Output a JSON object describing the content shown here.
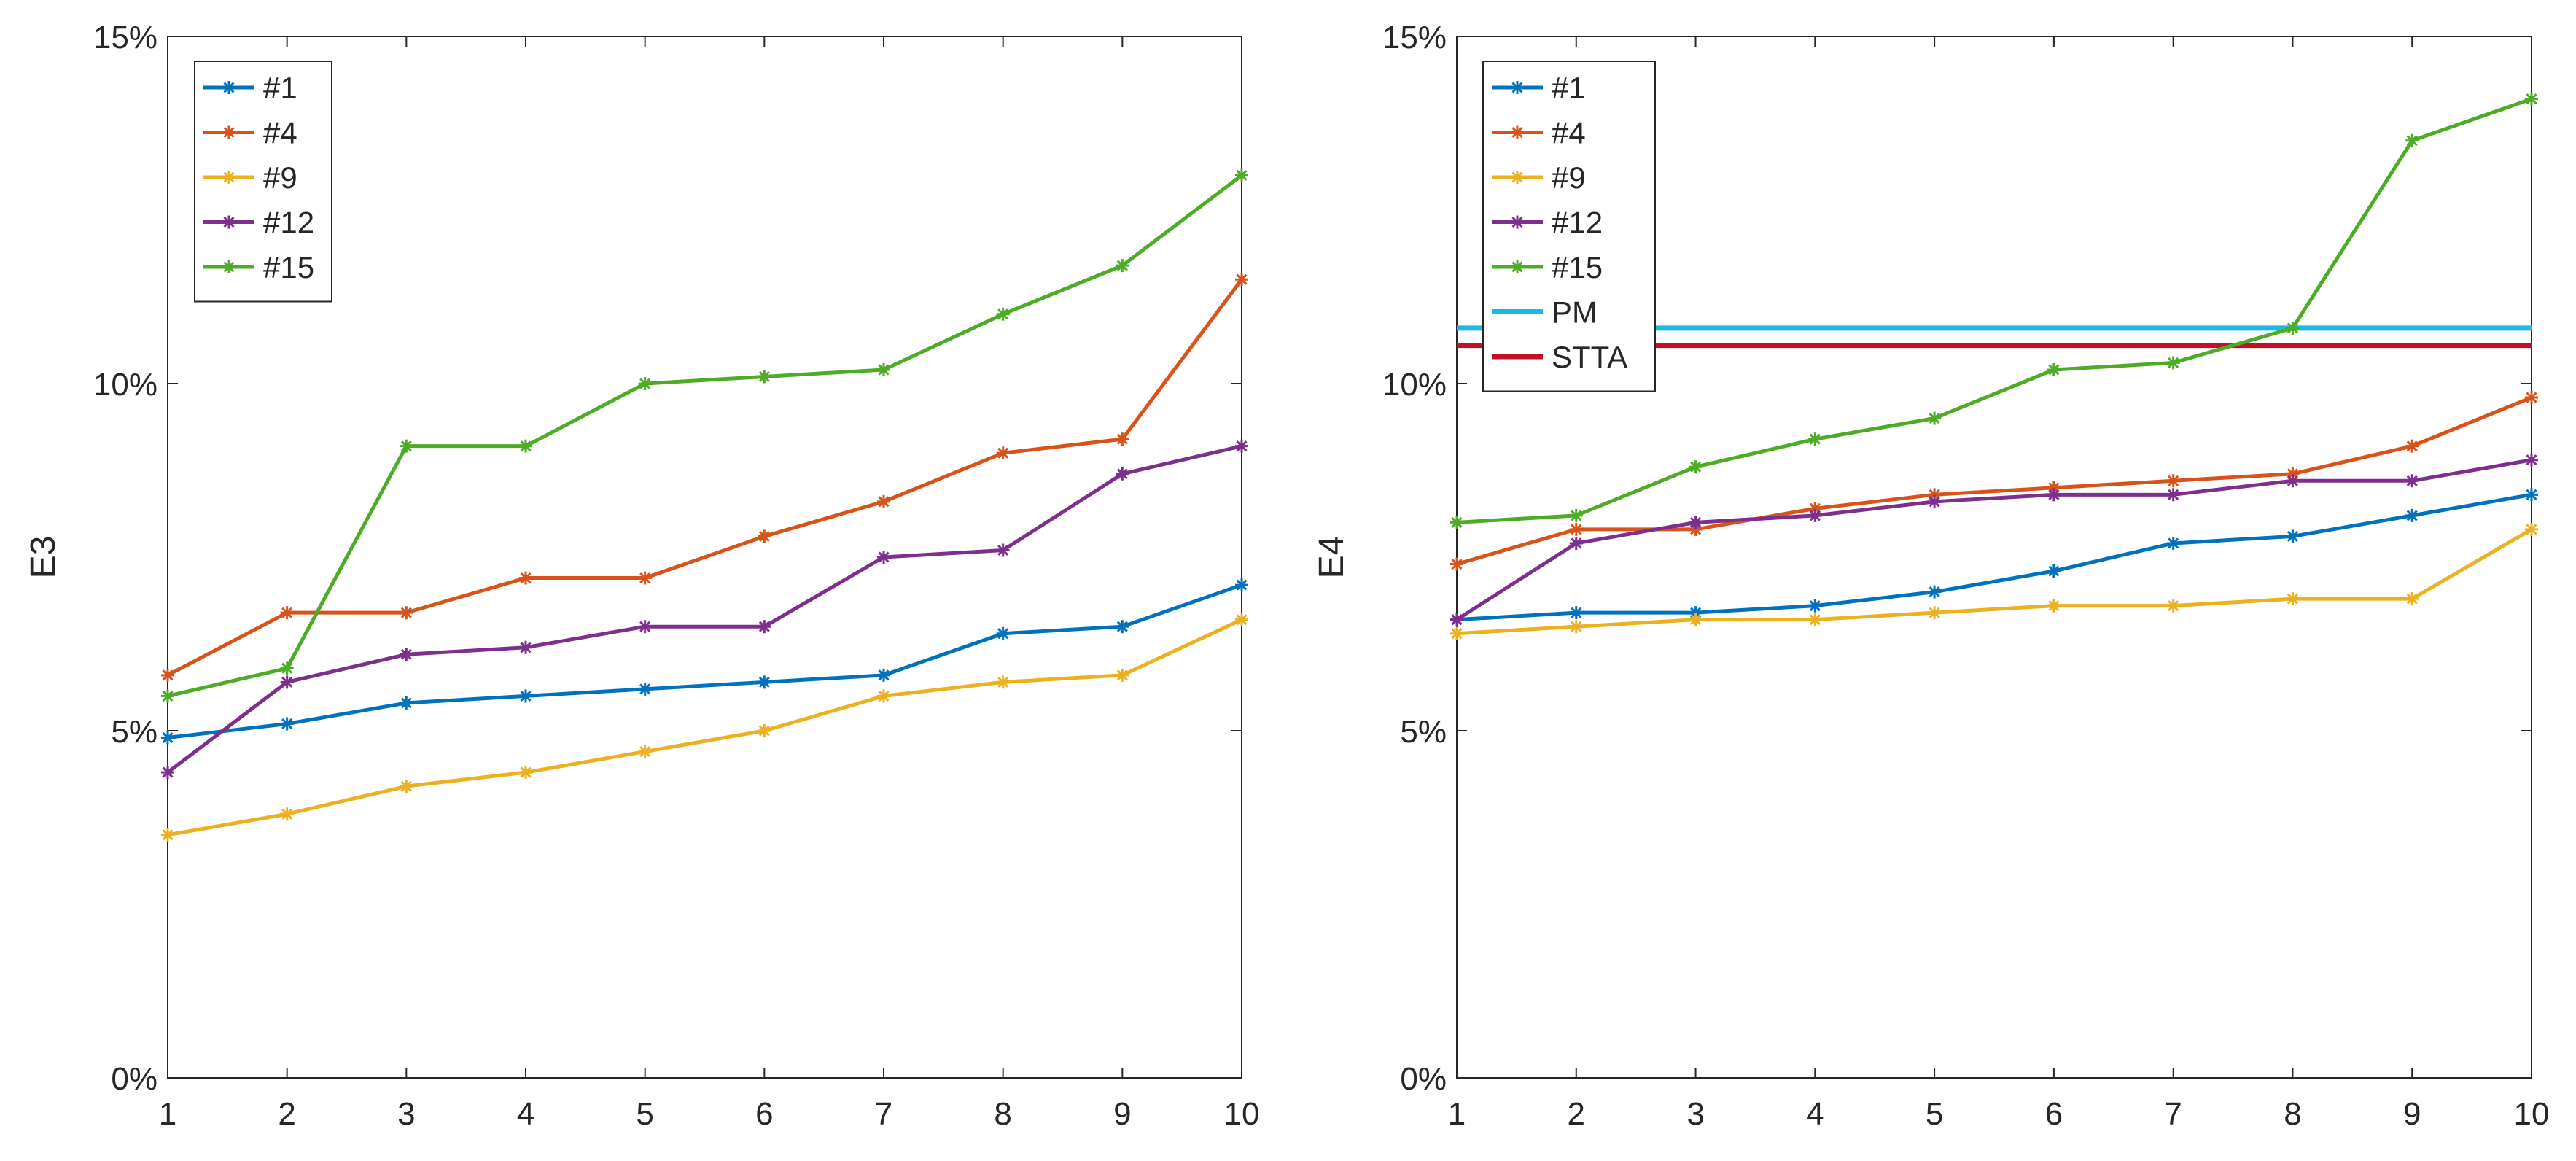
{
  "chart_data": [
    {
      "type": "line",
      "ylabel": "E3",
      "xlabel": "",
      "x": [
        1,
        2,
        3,
        4,
        5,
        6,
        7,
        8,
        9,
        10
      ],
      "xticks": [
        "1",
        "2",
        "3",
        "4",
        "5",
        "6",
        "7",
        "8",
        "9",
        "10"
      ],
      "ylim": [
        0,
        15
      ],
      "yticks": [
        0,
        5,
        10,
        15
      ],
      "ytick_labels": [
        "0%",
        "5%",
        "10%",
        "15%"
      ],
      "legend_position": "top-left",
      "series": [
        {
          "name": "#1",
          "color": "#0072BD",
          "values": [
            4.9,
            5.1,
            5.4,
            5.5,
            5.6,
            5.7,
            5.8,
            6.4,
            6.5,
            7.1
          ]
        },
        {
          "name": "#4",
          "color": "#D95319",
          "values": [
            5.8,
            6.7,
            6.7,
            7.2,
            7.2,
            7.8,
            8.3,
            9.0,
            9.2,
            11.5
          ]
        },
        {
          "name": "#9",
          "color": "#EDB120",
          "values": [
            3.5,
            3.8,
            4.2,
            4.4,
            4.7,
            5.0,
            5.5,
            5.7,
            5.8,
            6.6
          ]
        },
        {
          "name": "#12",
          "color": "#7E2F8E",
          "values": [
            4.4,
            5.7,
            6.1,
            6.2,
            6.5,
            6.5,
            7.5,
            7.6,
            8.7,
            9.1
          ]
        },
        {
          "name": "#15",
          "color": "#4DAC26",
          "values": [
            5.5,
            5.9,
            9.1,
            9.1,
            10.0,
            10.1,
            10.2,
            11.0,
            11.7,
            13.0
          ]
        }
      ],
      "reference_lines": []
    },
    {
      "type": "line",
      "ylabel": "E4",
      "xlabel": "",
      "x": [
        1,
        2,
        3,
        4,
        5,
        6,
        7,
        8,
        9,
        10
      ],
      "xticks": [
        "1",
        "2",
        "3",
        "4",
        "5",
        "6",
        "7",
        "8",
        "9",
        "10"
      ],
      "ylim": [
        0,
        15
      ],
      "yticks": [
        0,
        5,
        10,
        15
      ],
      "ytick_labels": [
        "0%",
        "5%",
        "10%",
        "15%"
      ],
      "legend_position": "top-left",
      "series": [
        {
          "name": "#1",
          "color": "#0072BD",
          "values": [
            6.6,
            6.7,
            6.7,
            6.8,
            7.0,
            7.3,
            7.7,
            7.8,
            8.1,
            8.4
          ]
        },
        {
          "name": "#4",
          "color": "#D95319",
          "values": [
            7.4,
            7.9,
            7.9,
            8.2,
            8.4,
            8.5,
            8.6,
            8.7,
            9.1,
            9.8
          ]
        },
        {
          "name": "#9",
          "color": "#EDB120",
          "values": [
            6.4,
            6.5,
            6.6,
            6.6,
            6.7,
            6.8,
            6.8,
            6.9,
            6.9,
            7.9
          ]
        },
        {
          "name": "#12",
          "color": "#7E2F8E",
          "values": [
            6.6,
            7.7,
            8.0,
            8.1,
            8.3,
            8.4,
            8.4,
            8.6,
            8.6,
            8.9
          ]
        },
        {
          "name": "#15",
          "color": "#4DAC26",
          "values": [
            8.0,
            8.1,
            8.8,
            9.2,
            9.5,
            10.2,
            10.3,
            10.8,
            13.5,
            14.1
          ]
        }
      ],
      "reference_lines": [
        {
          "name": "PM",
          "color": "#1EB8E6",
          "value": 10.8
        },
        {
          "name": "STTA",
          "color": "#C0102A",
          "value": 10.55
        }
      ]
    }
  ]
}
